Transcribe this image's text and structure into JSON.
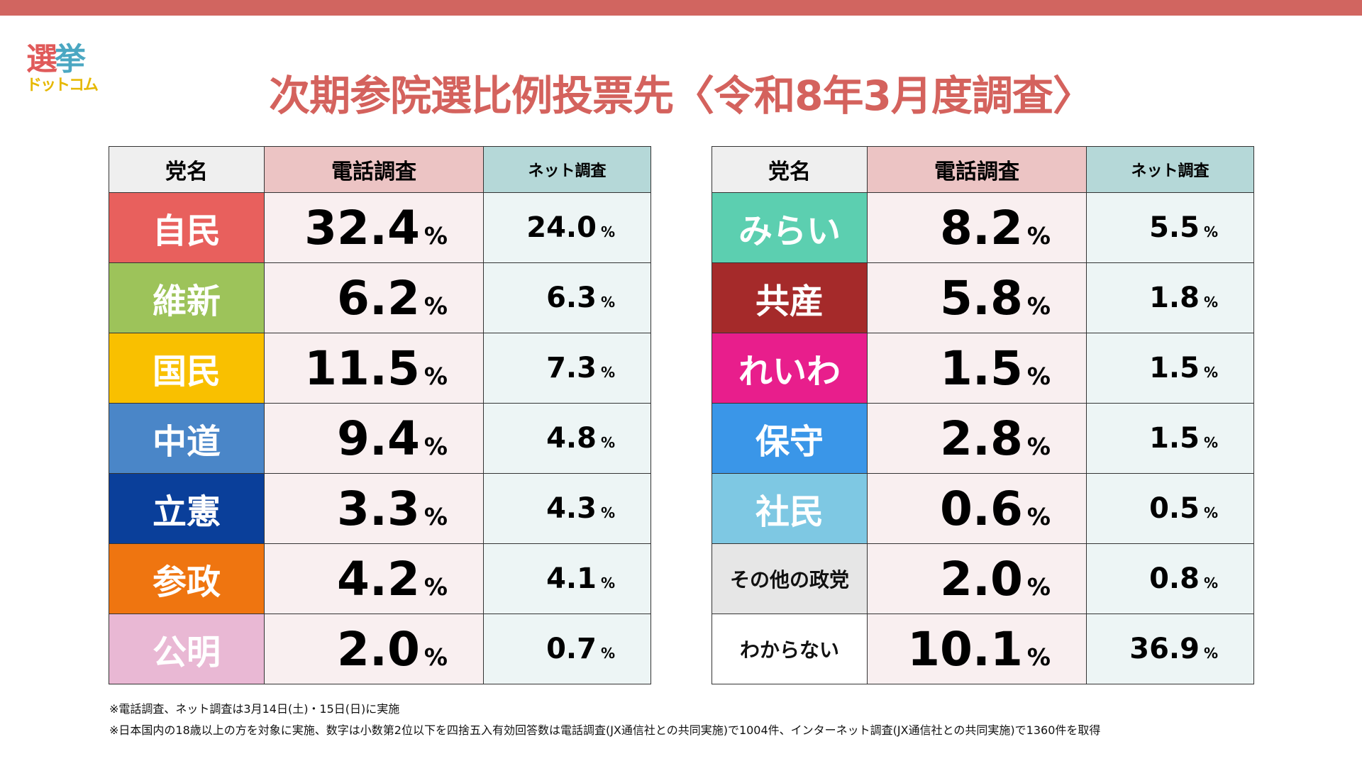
{
  "logo": {
    "line1a": "選",
    "line1b": "挙",
    "line2": "ドットコム"
  },
  "title": "次期参院選比例投票先〈令和8年3月度調査〉",
  "headers": {
    "party": "党名",
    "phone": "電話調査",
    "net": "ネット調査"
  },
  "unit": "%",
  "left": [
    {
      "party": "自民",
      "phone": "32.4",
      "net": "24.0",
      "color": "#e8605d"
    },
    {
      "party": "維新",
      "phone": "6.2",
      "net": "6.3",
      "color": "#9dc35a"
    },
    {
      "party": "国民",
      "phone": "11.5",
      "net": "7.3",
      "color": "#f9c000"
    },
    {
      "party": "中道",
      "phone": "9.4",
      "net": "4.8",
      "color": "#4a86c8"
    },
    {
      "party": "立憲",
      "phone": "3.3",
      "net": "4.3",
      "color": "#0a3f9a"
    },
    {
      "party": "参政",
      "phone": "4.2",
      "net": "4.1",
      "color": "#ef7510"
    },
    {
      "party": "公明",
      "phone": "2.0",
      "net": "0.7",
      "color": "#e9b8d4"
    }
  ],
  "right": [
    {
      "party": "みらい",
      "phone": "8.2",
      "net": "5.5",
      "color": "#5ccfb0"
    },
    {
      "party": "共産",
      "phone": "5.8",
      "net": "1.8",
      "color": "#a52a2a"
    },
    {
      "party": "れいわ",
      "phone": "1.5",
      "net": "1.5",
      "color": "#e81e8c"
    },
    {
      "party": "保守",
      "phone": "2.8",
      "net": "1.5",
      "color": "#3a96e8"
    },
    {
      "party": "社民",
      "phone": "0.6",
      "net": "0.5",
      "color": "#7ec8e3"
    },
    {
      "party": "その他の政党",
      "phone": "2.0",
      "net": "0.8",
      "color": "#e6e6e6",
      "dark": true
    },
    {
      "party": "わからない",
      "phone": "10.1",
      "net": "36.9",
      "color": "#ffffff",
      "dark": true
    }
  ],
  "notes": [
    "※電話調査、ネット調査は3月14日(土)・15日(日)に実施",
    "※日本国内の18歳以上の方を対象に実施、数字は小数第2位以下を四捨五入有効回答数は電話調査(JX通信社との共同実施)で1004件、インターネット調査(JX通信社との共同実施)で1360件を取得"
  ]
}
